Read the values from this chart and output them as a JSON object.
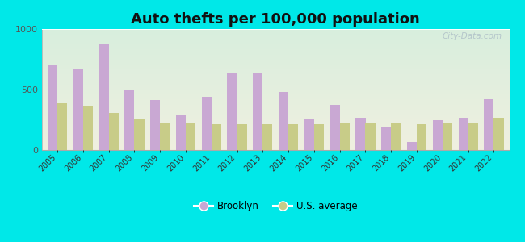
{
  "years": [
    2005,
    2006,
    2007,
    2008,
    2009,
    2010,
    2011,
    2012,
    2013,
    2014,
    2015,
    2016,
    2017,
    2018,
    2019,
    2020,
    2021,
    2022
  ],
  "brooklyn": [
    710,
    675,
    880,
    500,
    415,
    290,
    440,
    635,
    640,
    480,
    255,
    375,
    270,
    195,
    65,
    245,
    270,
    420
  ],
  "us_average": [
    385,
    360,
    310,
    260,
    230,
    220,
    215,
    215,
    215,
    215,
    215,
    220,
    220,
    220,
    215,
    225,
    230,
    265
  ],
  "brooklyn_color": "#c9a8d3",
  "us_color": "#c8cc88",
  "background_outer": "#00e8e8",
  "bg_top": "#d8eedd",
  "bg_bottom": "#f0f0e0",
  "title": "Auto thefts per 100,000 population",
  "title_fontsize": 13,
  "ylim": [
    0,
    1000
  ],
  "yticks": [
    0,
    500,
    1000
  ],
  "legend_brooklyn": "Brooklyn",
  "legend_us": "U.S. average",
  "watermark": "City-Data.com"
}
